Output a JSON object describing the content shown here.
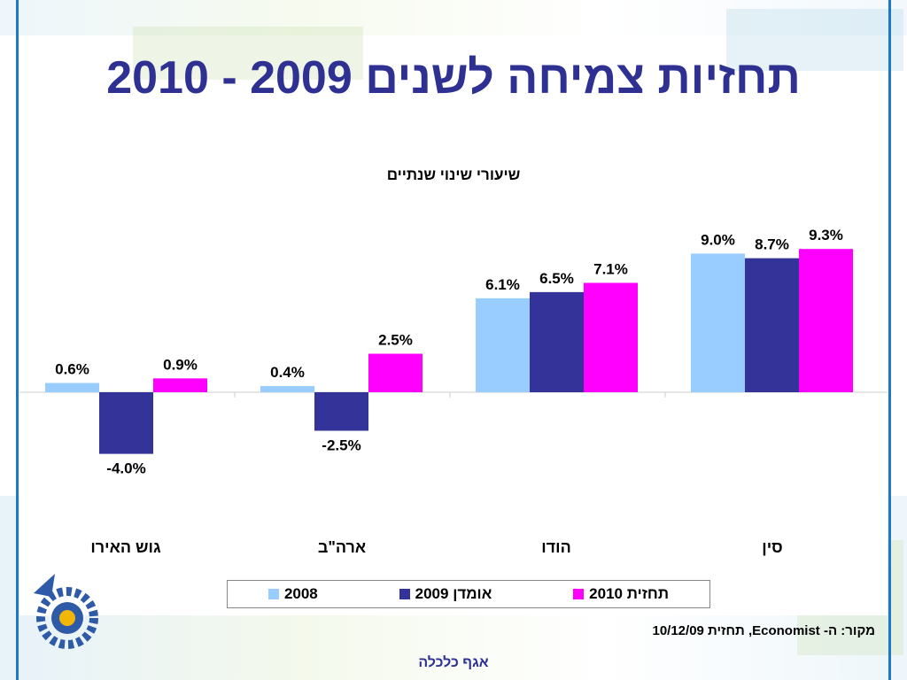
{
  "slide": {
    "title": "תחזיות צמיחה לשנים 2009 - 2010",
    "source": "מקור: ה- Economist, תחזית 10/12/09",
    "footer": "אגף כלכלה"
  },
  "colors": {
    "series_2008": "#99ccff",
    "series_2009": "#333399",
    "series_2010": "#ff00ff",
    "title": "#2e3192",
    "frame": "#1e78c8"
  },
  "chart_data": {
    "type": "bar",
    "title": "שיעורי שינוי שנתיים",
    "categories": [
      "גוש האירו",
      "ארה\"ב",
      "הודו",
      "סין"
    ],
    "series": [
      {
        "name": "2008",
        "values": [
          0.6,
          0.4,
          6.1,
          9.0
        ]
      },
      {
        "name": "אומדן 2009",
        "values": [
          -4.0,
          -2.5,
          6.5,
          8.7
        ]
      },
      {
        "name": "תחזית 2010",
        "values": [
          0.9,
          2.5,
          7.1,
          9.3
        ]
      }
    ],
    "data_labels": [
      [
        "0.6%",
        "0.4%",
        "6.1%",
        "9.0%"
      ],
      [
        "-4.0%",
        "-2.5%",
        "6.5%",
        "8.7%"
      ],
      [
        "0.9%",
        "2.5%",
        "7.1%",
        "9.3%"
      ]
    ],
    "ylim": [
      -4.0,
      9.3
    ],
    "grid": false,
    "legend_placement": "bottom"
  },
  "icons": {
    "logo": "manufacturers-association-gear-logo"
  }
}
